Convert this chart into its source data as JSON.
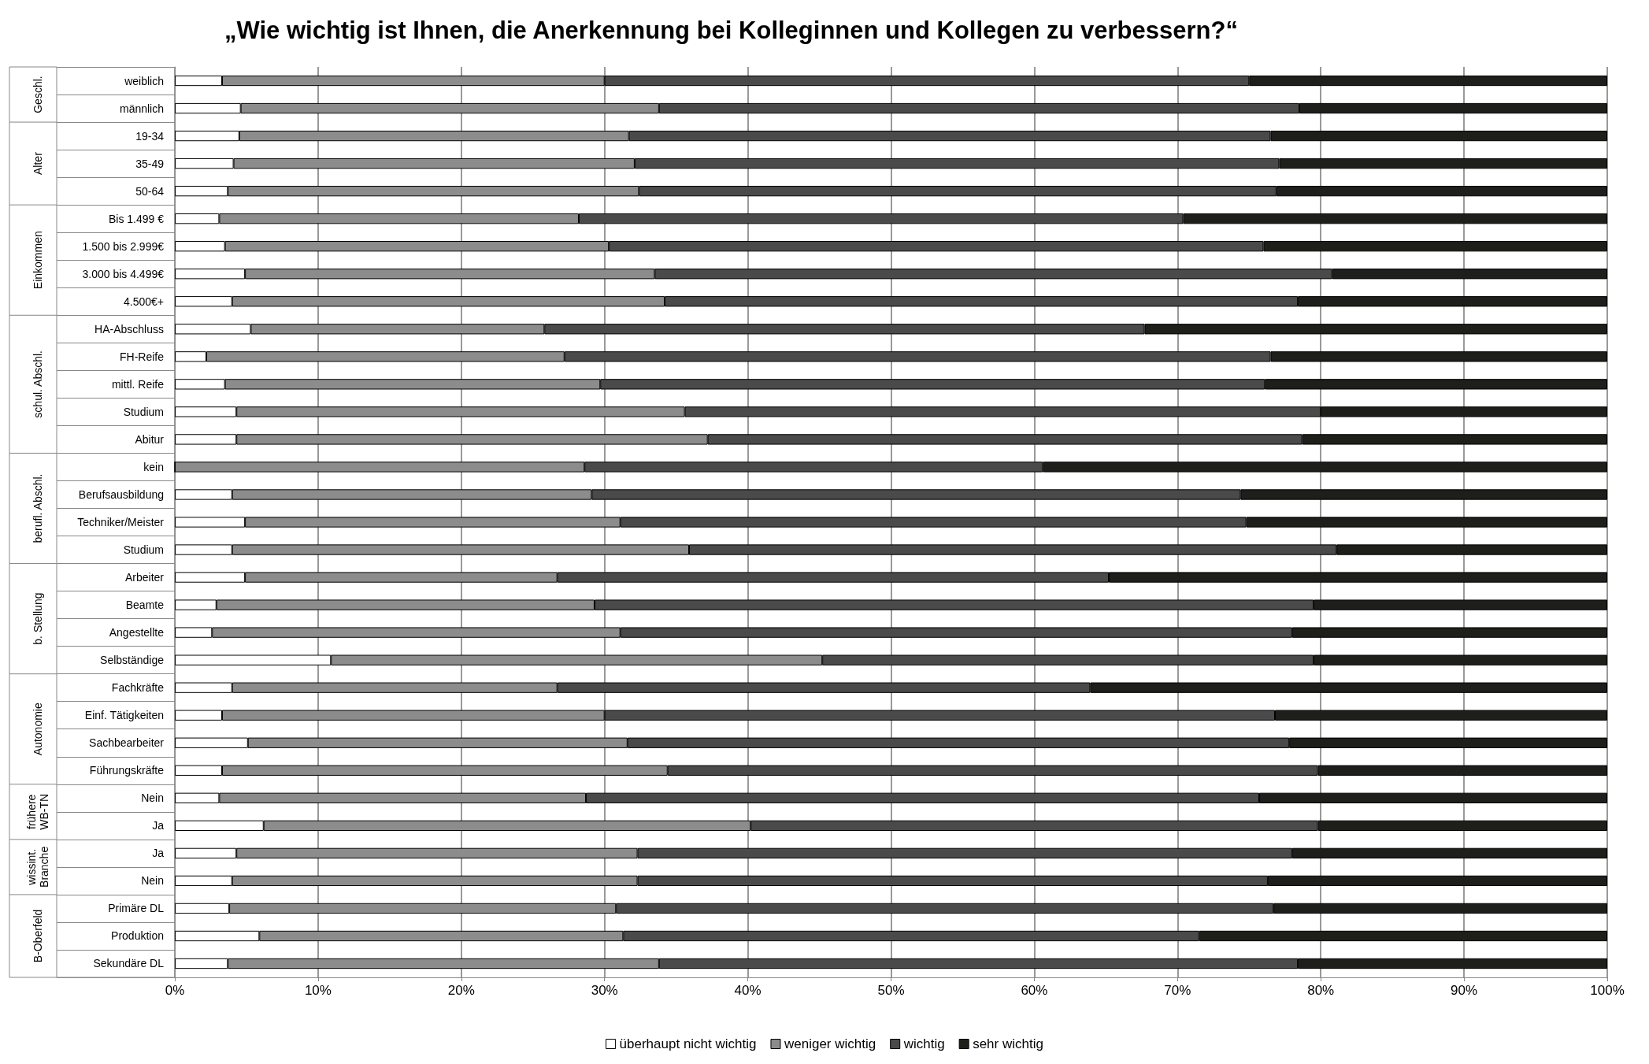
{
  "chart_data": {
    "type": "bar",
    "orientation": "horizontal",
    "stacked": true,
    "title": "„Wie wichtig ist Ihnen, die Anerkennung bei Kolleginnen und Kollegen zu verbessern?“",
    "categories": [
      "weiblich",
      "männlich",
      "19-34",
      "35-49",
      "50-64",
      "Bis 1.499 €",
      "1.500 bis 2.999€",
      "3.000 bis 4.499€",
      "4.500€+",
      "HA-Abschluss",
      "FH-Reife",
      "mittl. Reife",
      "Studium",
      "Abitur",
      "kein",
      "Berufsausbildung",
      "Techniker/Meister",
      "Studium",
      "Arbeiter",
      "Beamte",
      "Angestellte",
      "Selbständige",
      "Fachkräfte",
      "Einf. Tätigkeiten",
      "Sachbearbeiter",
      "Führungskräfte",
      "Nein",
      "Ja",
      "Ja",
      "Nein",
      "Primäre DL",
      "Produktion",
      "Sekundäre DL"
    ],
    "series": [
      {
        "name": "überhaupt nicht wichtig",
        "color": "#ffffff",
        "values": [
          3.3,
          4.6,
          4.5,
          4.1,
          3.7,
          3.1,
          3.5,
          4.9,
          4.0,
          5.3,
          2.2,
          3.5,
          4.3,
          4.3,
          0,
          4.0,
          4.9,
          4.0,
          4.9,
          2.9,
          2.6,
          10.9,
          4.0,
          3.3,
          5.1,
          3.3,
          3.1,
          6.2,
          4.3,
          4.0,
          3.8,
          5.9,
          3.7
        ]
      },
      {
        "name": "weniger wichtig",
        "color": "#8c8c8c",
        "values": [
          26.7,
          29.2,
          27.2,
          28.0,
          28.7,
          25.1,
          26.8,
          28.6,
          30.2,
          20.5,
          25.0,
          26.2,
          31.3,
          32.9,
          28.6,
          25.1,
          26.2,
          31.9,
          21.8,
          26.4,
          28.5,
          34.3,
          22.7,
          26.7,
          26.5,
          31.1,
          25.6,
          34.0,
          28.0,
          28.3,
          27.0,
          25.4,
          30.1
        ]
      },
      {
        "name": "wichtig",
        "color": "#4a4a4a",
        "values": [
          45.0,
          44.7,
          44.8,
          45.0,
          44.5,
          42.2,
          45.7,
          47.3,
          44.2,
          41.9,
          49.3,
          46.4,
          44.4,
          41.5,
          32.0,
          45.3,
          43.7,
          45.2,
          38.5,
          50.2,
          46.9,
          34.3,
          37.2,
          46.8,
          46.2,
          45.4,
          47.0,
          39.6,
          45.7,
          44.0,
          45.9,
          40.2,
          44.6
        ]
      },
      {
        "name": "sehr wichtig",
        "color": "#1e1e1a",
        "values": [
          25.0,
          21.5,
          23.5,
          22.9,
          23.1,
          29.6,
          24.0,
          19.2,
          21.6,
          32.3,
          23.5,
          23.9,
          20.0,
          21.3,
          39.4,
          25.6,
          25.2,
          18.9,
          34.8,
          20.5,
          22.0,
          20.5,
          36.1,
          23.2,
          22.2,
          20.2,
          24.3,
          20.2,
          22.0,
          23.7,
          23.3,
          28.5,
          21.6
        ]
      }
    ],
    "xlim": [
      0,
      100
    ],
    "xticks": [
      {
        "value": 0,
        "label": "0%"
      },
      {
        "value": 10,
        "label": "10%"
      },
      {
        "value": 20,
        "label": "20%"
      },
      {
        "value": 30,
        "label": "30%"
      },
      {
        "value": 40,
        "label": "40%"
      },
      {
        "value": 50,
        "label": "50%"
      },
      {
        "value": 60,
        "label": "60%"
      },
      {
        "value": 70,
        "label": "70%"
      },
      {
        "value": 80,
        "label": "80%"
      },
      {
        "value": 90,
        "label": "90%"
      },
      {
        "value": 100,
        "label": "100%"
      }
    ],
    "grid": "x",
    "legend": "bottom",
    "annotations": [
      "Geschl.",
      "Alter",
      "Einkommen",
      "schul. Abschl.",
      "berufl. Abschl.",
      "b. Stellung",
      "Autonomie",
      "frühere WB-TN",
      "wissint. Branche",
      "B-Oberfeld"
    ]
  }
}
